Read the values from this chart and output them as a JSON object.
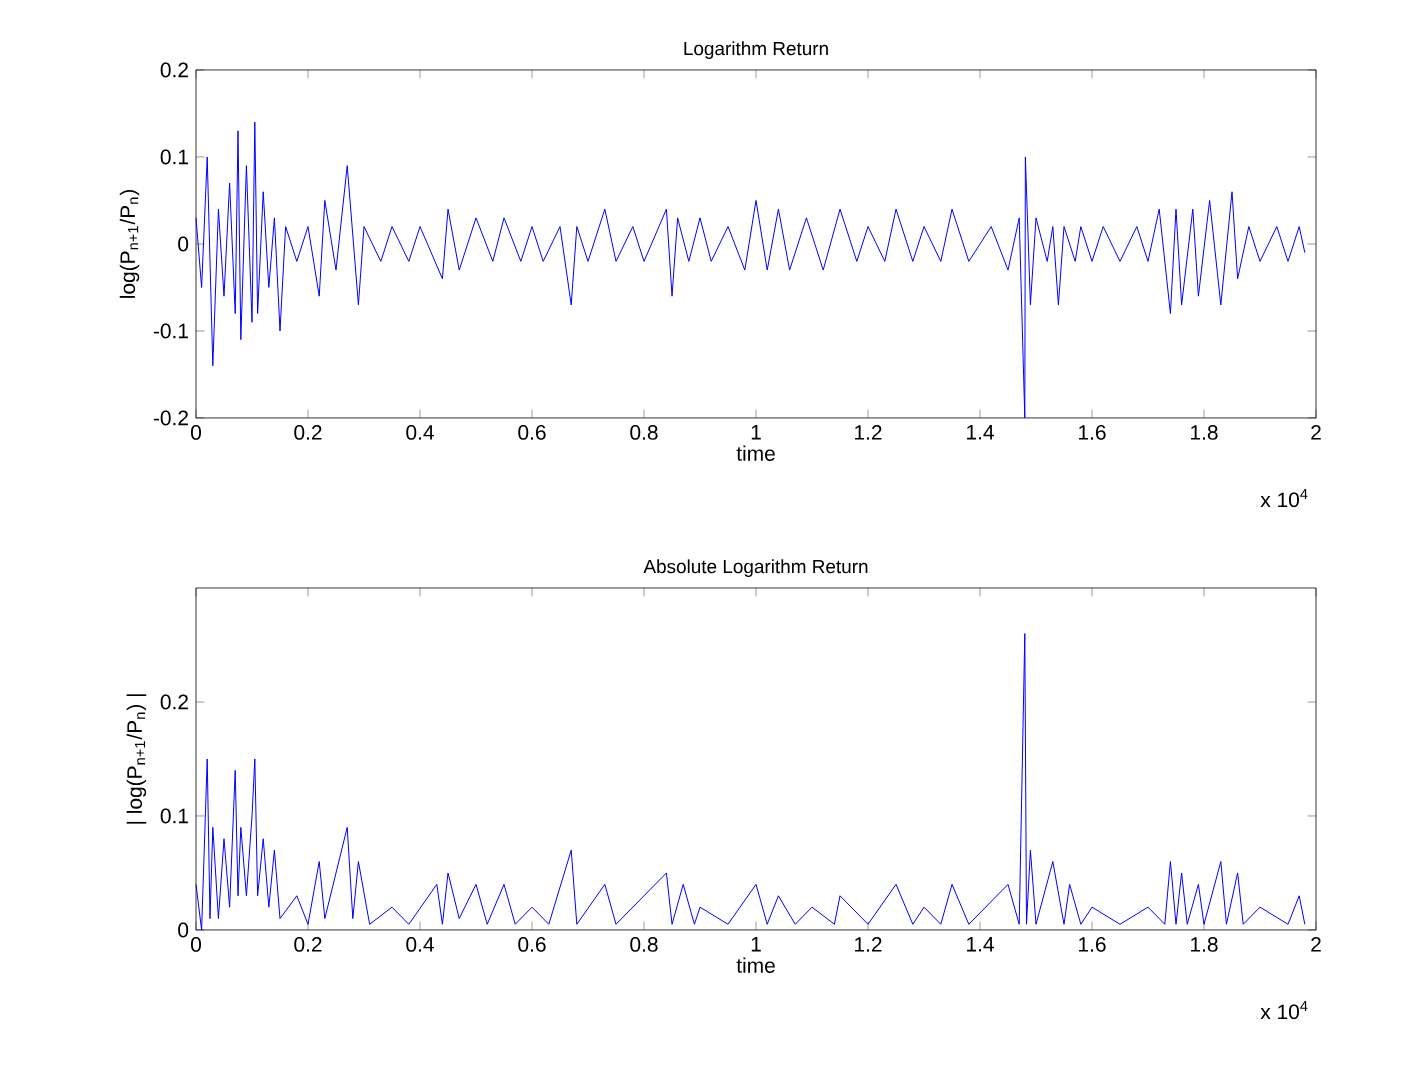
{
  "chart_data": [
    {
      "type": "line",
      "title": "Logarithm Return",
      "xlabel": "time",
      "ylabel": "log(P$_{n+1}$/P$_{n}$)",
      "annotations": [
        "x 10$^{4}$"
      ],
      "series": [
        {
          "color": "#0000ff",
          "x": [
            0,
            0.01,
            0.02,
            0.03,
            0.04,
            0.05,
            0.06,
            0.07,
            0.075,
            0.08,
            0.09,
            0.1,
            0.105,
            0.11,
            0.12,
            0.13,
            0.14,
            0.15,
            0.16,
            0.18,
            0.2,
            0.22,
            0.23,
            0.25,
            0.27,
            0.29,
            0.3,
            0.33,
            0.35,
            0.38,
            0.4,
            0.44,
            0.45,
            0.47,
            0.5,
            0.53,
            0.55,
            0.58,
            0.6,
            0.62,
            0.65,
            0.67,
            0.68,
            0.7,
            0.73,
            0.75,
            0.78,
            0.8,
            0.84,
            0.85,
            0.86,
            0.88,
            0.9,
            0.92,
            0.95,
            0.98,
            1,
            1.02,
            1.04,
            1.06,
            1.09,
            1.12,
            1.15,
            1.18,
            1.2,
            1.23,
            1.25,
            1.28,
            1.3,
            1.33,
            1.35,
            1.38,
            1.42,
            1.45,
            1.47,
            1.48,
            1.481,
            1.49,
            1.5,
            1.52,
            1.53,
            1.54,
            1.55,
            1.57,
            1.58,
            1.6,
            1.62,
            1.65,
            1.68,
            1.7,
            1.72,
            1.74,
            1.75,
            1.76,
            1.78,
            1.79,
            1.81,
            1.83,
            1.85,
            1.86,
            1.88,
            1.9,
            1.93,
            1.95,
            1.97,
            1.98
          ],
          "values": [
            0.03,
            -0.05,
            0.1,
            -0.14,
            0.04,
            -0.06,
            0.07,
            -0.08,
            0.13,
            -0.11,
            0.09,
            -0.09,
            0.14,
            -0.08,
            0.06,
            -0.05,
            0.03,
            -0.1,
            0.02,
            -0.02,
            0.02,
            -0.06,
            0.05,
            -0.03,
            0.09,
            -0.07,
            0.02,
            -0.02,
            0.02,
            -0.02,
            0.02,
            -0.04,
            0.04,
            -0.03,
            0.03,
            -0.02,
            0.03,
            -0.02,
            0.02,
            -0.02,
            0.02,
            -0.07,
            0.02,
            -0.02,
            0.04,
            -0.02,
            0.02,
            -0.02,
            0.04,
            -0.06,
            0.03,
            -0.02,
            0.03,
            -0.02,
            0.02,
            -0.03,
            0.05,
            -0.03,
            0.04,
            -0.03,
            0.03,
            -0.03,
            0.04,
            -0.02,
            0.02,
            -0.02,
            0.04,
            -0.02,
            0.02,
            -0.02,
            0.04,
            -0.02,
            0.02,
            -0.03,
            0.03,
            -0.2,
            0.1,
            -0.07,
            0.03,
            -0.02,
            0.02,
            -0.07,
            0.02,
            -0.02,
            0.02,
            -0.02,
            0.02,
            -0.02,
            0.02,
            -0.02,
            0.04,
            -0.08,
            0.04,
            -0.07,
            0.04,
            -0.06,
            0.05,
            -0.07,
            0.06,
            -0.04,
            0.02,
            -0.02,
            0.02,
            -0.02,
            0.02,
            -0.01
          ]
        }
      ],
      "xlim": [
        0,
        2
      ],
      "xticks": [
        0,
        0.2,
        0.4,
        0.6,
        0.8,
        1,
        1.2,
        1.4,
        1.6,
        1.8,
        2
      ],
      "ylim": [
        -0.2,
        0.2
      ],
      "yticks": [
        -0.2,
        -0.1,
        0,
        0.1,
        0.2
      ]
    },
    {
      "type": "line",
      "title": "Absolute Logarithm Return",
      "xlabel": "time",
      "ylabel": "| log(P$_{n+1}$/P$_{n}$) |",
      "annotations": [
        "x 10$^{4}$"
      ],
      "series": [
        {
          "color": "#0000ff",
          "x": [
            0,
            0.01,
            0.02,
            0.025,
            0.03,
            0.04,
            0.05,
            0.06,
            0.07,
            0.075,
            0.08,
            0.09,
            0.1,
            0.105,
            0.11,
            0.12,
            0.13,
            0.14,
            0.15,
            0.18,
            0.2,
            0.22,
            0.23,
            0.25,
            0.27,
            0.28,
            0.29,
            0.31,
            0.35,
            0.38,
            0.43,
            0.44,
            0.45,
            0.47,
            0.5,
            0.52,
            0.55,
            0.57,
            0.6,
            0.63,
            0.67,
            0.68,
            0.73,
            0.75,
            0.84,
            0.85,
            0.87,
            0.89,
            0.9,
            0.95,
            1,
            1.02,
            1.04,
            1.07,
            1.1,
            1.14,
            1.15,
            1.2,
            1.25,
            1.28,
            1.3,
            1.33,
            1.35,
            1.38,
            1.45,
            1.47,
            1.48,
            1.483,
            1.49,
            1.5,
            1.53,
            1.55,
            1.56,
            1.58,
            1.6,
            1.65,
            1.7,
            1.73,
            1.74,
            1.75,
            1.76,
            1.77,
            1.79,
            1.8,
            1.83,
            1.84,
            1.86,
            1.87,
            1.9,
            1.95,
            1.97,
            1.98
          ],
          "values": [
            0.04,
            0.0,
            0.15,
            0.01,
            0.09,
            0.01,
            0.08,
            0.02,
            0.14,
            0.03,
            0.09,
            0.03,
            0.1,
            0.15,
            0.03,
            0.08,
            0.02,
            0.07,
            0.01,
            0.03,
            0.005,
            0.06,
            0.01,
            0.05,
            0.09,
            0.01,
            0.06,
            0.005,
            0.02,
            0.005,
            0.04,
            0.005,
            0.05,
            0.01,
            0.04,
            0.005,
            0.04,
            0.005,
            0.02,
            0.005,
            0.07,
            0.005,
            0.04,
            0.005,
            0.05,
            0.005,
            0.04,
            0.005,
            0.02,
            0.005,
            0.04,
            0.005,
            0.03,
            0.005,
            0.02,
            0.005,
            0.03,
            0.005,
            0.04,
            0.005,
            0.02,
            0.005,
            0.04,
            0.005,
            0.04,
            0.005,
            0.26,
            0.005,
            0.07,
            0.005,
            0.06,
            0.005,
            0.04,
            0.005,
            0.02,
            0.005,
            0.02,
            0.005,
            0.06,
            0.005,
            0.05,
            0.005,
            0.04,
            0.005,
            0.06,
            0.005,
            0.05,
            0.005,
            0.02,
            0.005,
            0.03,
            0.005
          ]
        }
      ],
      "xlim": [
        0,
        2
      ],
      "xticks": [
        0,
        0.2,
        0.4,
        0.6,
        0.8,
        1,
        1.2,
        1.4,
        1.6,
        1.8,
        2
      ],
      "ylim": [
        0,
        0.3
      ],
      "yticks": [
        0,
        0.1,
        0.2
      ]
    }
  ]
}
